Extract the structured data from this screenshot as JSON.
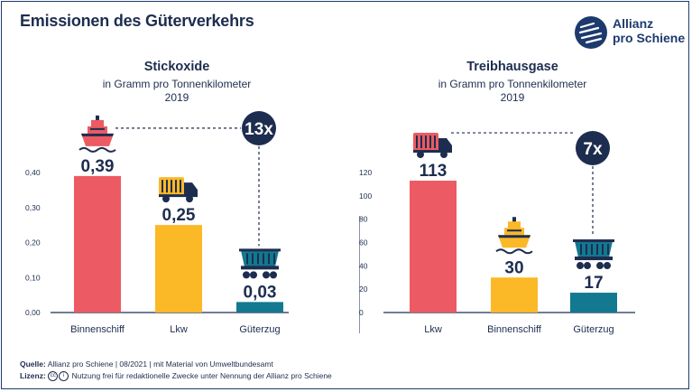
{
  "header": {
    "title": "Emissionen des Güterverkehrs",
    "logo_line1": "Allianz",
    "logo_line2": "pro Schiene"
  },
  "colors": {
    "red": "#ec5a63",
    "yellow": "#fbb827",
    "teal": "#127990",
    "navy": "#1d2d4f",
    "logo_blue": "#1d3a6e"
  },
  "chart_data": [
    {
      "type": "bar",
      "title": "Stickoxide",
      "subtitle": "in Gramm pro Tonnenkilometer",
      "year": "2019",
      "categories": [
        "Binnenschiff",
        "Lkw",
        "Güterzug"
      ],
      "values": [
        0.39,
        0.25,
        0.03
      ],
      "value_labels": [
        "0,39",
        "0,25",
        "0,03"
      ],
      "icons": [
        "ship-icon",
        "truck-icon",
        "freight-wagon-icon"
      ],
      "bar_colors": [
        "#ec5a63",
        "#fbb827",
        "#127990"
      ],
      "ylim": [
        0,
        0.4
      ],
      "yticks": [
        0,
        0.1,
        0.2,
        0.3,
        0.4
      ],
      "ytick_labels": [
        "0,00",
        "0,10",
        "0,20",
        "0,30",
        "0,40"
      ],
      "factor_label": "13x",
      "grid": false
    },
    {
      "type": "bar",
      "title": "Treibhausgase",
      "subtitle": "in Gramm pro Tonnenkilometer",
      "year": "2019",
      "categories": [
        "Lkw",
        "Binnenschiff",
        "Güterzug"
      ],
      "values": [
        113,
        30,
        17
      ],
      "value_labels": [
        "113",
        "30",
        "17"
      ],
      "icons": [
        "truck-icon",
        "ship-icon",
        "freight-wagon-icon"
      ],
      "bar_colors": [
        "#ec5a63",
        "#fbb827",
        "#127990"
      ],
      "ylim": [
        0,
        120
      ],
      "yticks": [
        0,
        20,
        40,
        60,
        80,
        100,
        120
      ],
      "ytick_labels": [
        "0",
        "20",
        "40",
        "60",
        "80",
        "100",
        "120"
      ],
      "factor_label": "7x",
      "grid": false
    }
  ],
  "footer": {
    "source_label": "Quelle:",
    "source_text": "Allianz pro Schiene | 08/2021 | mit Material von Umweltbundesamt",
    "license_label": "Lizenz:",
    "license_text": "Nutzung frei für redaktionelle Zwecke unter Nennung der Allianz pro Schiene"
  }
}
